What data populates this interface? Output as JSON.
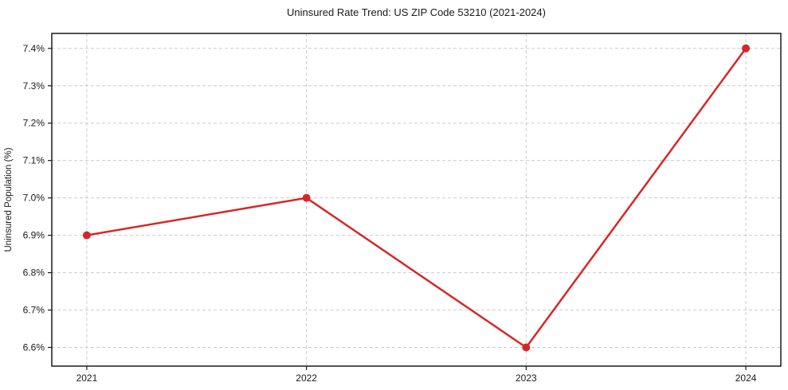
{
  "chart_data": {
    "type": "line",
    "title": "Uninsured Rate Trend: US ZIP Code 53210 (2021-2024)",
    "xlabel": "",
    "ylabel": "Uninsured Population (%)",
    "categories": [
      "2021",
      "2022",
      "2023",
      "2024"
    ],
    "values": [
      6.9,
      7.0,
      6.6,
      7.4
    ],
    "yticks": [
      6.6,
      6.7,
      6.8,
      6.9,
      7.0,
      7.1,
      7.2,
      7.3,
      7.4
    ],
    "ytick_suffix": "%",
    "ylim": [
      6.55,
      7.44
    ],
    "grid": true,
    "legend": false,
    "line_color": "#d62728",
    "marker_color": "#d62728",
    "grid_color": "#cccccc",
    "spine_color": "#1a1a1a",
    "text_color": "#1a1a1a"
  }
}
